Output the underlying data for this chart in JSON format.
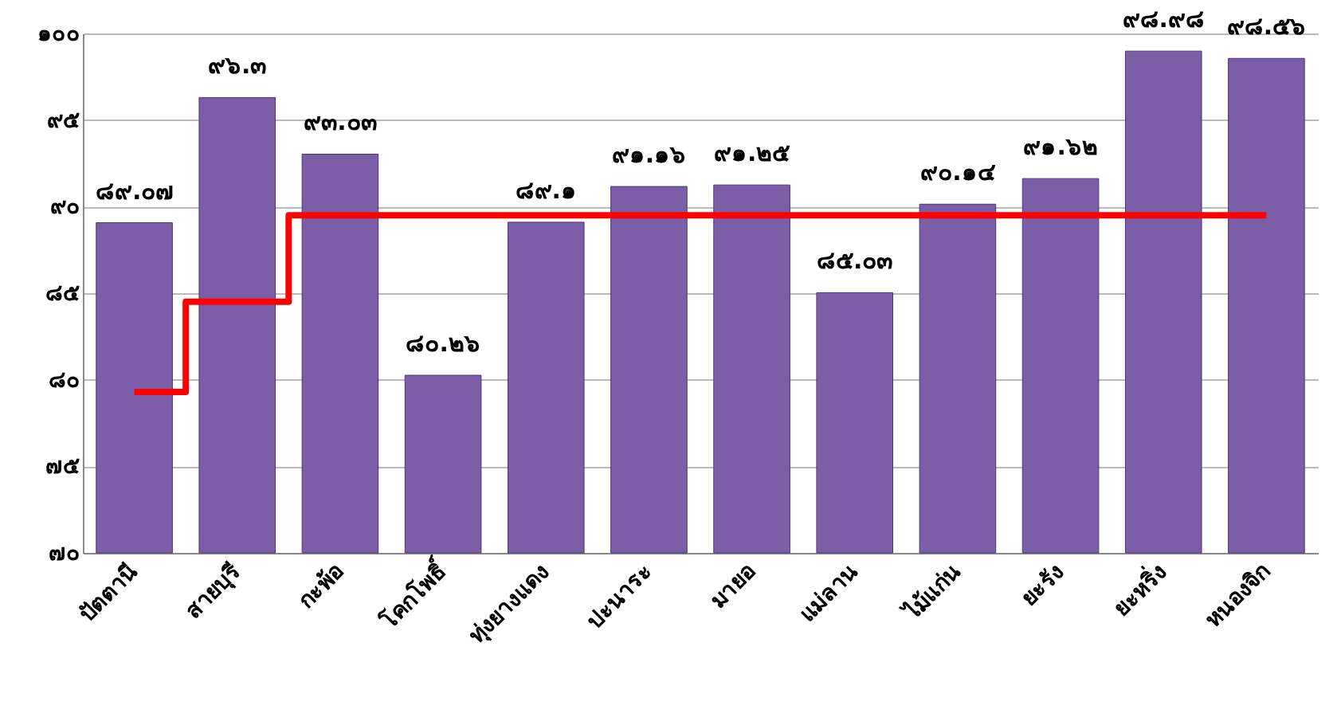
{
  "chart_data": {
    "type": "bar",
    "categories": [
      "ปัตตานี",
      "สายบุรี",
      "กะพ้อ",
      "โคกโพธิ์",
      "ทุ่งยางแดง",
      "ปะนาระ",
      "มายอ",
      "แม่ลาน",
      "ไม้แก่น",
      "ยะรัง",
      "ยะหริ่ง",
      "หนองจิก"
    ],
    "series": [
      {
        "color": "#7b5ea7",
        "values": [
          89.07,
          96.3,
          93.03,
          80.26,
          89.1,
          91.16,
          91.25,
          85.03,
          90.14,
          91.62,
          98.98,
          98.56
        ],
        "value_labels": [
          "๘๙.๐๗",
          "๙๖.๓",
          "๙๓.๐๓",
          "๘๐.๒๖",
          "๘๙.๑",
          "๙๑.๑๖",
          "๙๑.๒๕",
          "๘๕.๐๓",
          "๙๐.๑๔",
          "๙๑.๖๒",
          "๙๘.๙๘",
          "๙๘.๕๖"
        ]
      },
      {
        "type": "step",
        "color": "#ff0000",
        "values": [
          79.3,
          84.5,
          89.5,
          89.5,
          89.5,
          89.5,
          89.5,
          89.5,
          89.5,
          89.5,
          89.5,
          89.5
        ]
      }
    ],
    "ylim": [
      70,
      100
    ],
    "yticks": [
      {
        "value": 70,
        "label": "๗๐"
      },
      {
        "value": 75,
        "label": "๗๕"
      },
      {
        "value": 80,
        "label": "๘๐"
      },
      {
        "value": 85,
        "label": "๘๕"
      },
      {
        "value": 90,
        "label": "๙๐"
      },
      {
        "value": 95,
        "label": "๙๕"
      },
      {
        "value": 100,
        "label": "๑๐๐"
      }
    ],
    "grid": "y",
    "legend": false
  }
}
